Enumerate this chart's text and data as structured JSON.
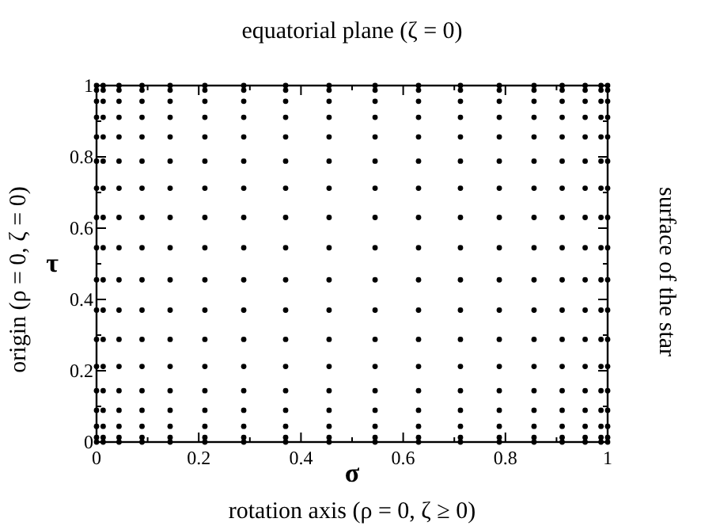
{
  "chart_data": {
    "type": "scatter",
    "title": "equatorial plane (ζ = 0)",
    "xlabel": "σ",
    "ylabel": "τ",
    "annotations": [
      "rotation axis (ρ = 0, ζ ≥ 0)",
      "origin (ρ = 0, ζ = 0)",
      "surface of the star"
    ],
    "xlim": [
      0,
      1
    ],
    "ylim": [
      0,
      1
    ],
    "xticks": [
      0,
      {
        "value": 0.1,
        "label": null
      },
      0.2,
      {
        "value": 0.3,
        "label": null
      },
      0.4,
      {
        "value": 0.5,
        "label": null
      },
      0.6,
      {
        "value": 0.7,
        "label": null
      },
      0.8,
      {
        "value": 0.9,
        "label": null
      },
      1
    ],
    "yticks": [
      0,
      {
        "value": 0.1,
        "label": null
      },
      0.2,
      {
        "value": 0.3,
        "label": null
      },
      0.4,
      {
        "value": 0.5,
        "label": null
      },
      0.6,
      {
        "value": 0.7,
        "label": null
      },
      0.8,
      {
        "value": 0.9,
        "label": null
      },
      1
    ],
    "grid": false,
    "marker": "circle",
    "series": [
      {
        "color": "#000000",
        "x": [
          0,
          0.013,
          0.044,
          0.089,
          0.144,
          0.212,
          0.288,
          0.37,
          0.455,
          0.545,
          0.63,
          0.712,
          0.788,
          0.856,
          0.911,
          0.956,
          0.987,
          1,
          0,
          0.013,
          0.044,
          0.089,
          0.144,
          0.212,
          0.288,
          0.37,
          0.455,
          0.545,
          0.63,
          0.712,
          0.788,
          0.856,
          0.911,
          0.956,
          0.987,
          1,
          0,
          0.013,
          0.044,
          0.089,
          0.144,
          0.212,
          0.288,
          0.37,
          0.455,
          0.545,
          0.63,
          0.712,
          0.788,
          0.856,
          0.911,
          0.956,
          0.987,
          1,
          0,
          0.013,
          0.044,
          0.089,
          0.144,
          0.212,
          0.288,
          0.37,
          0.455,
          0.545,
          0.63,
          0.712,
          0.788,
          0.856,
          0.911,
          0.956,
          0.987,
          1,
          0,
          0.013,
          0.044,
          0.089,
          0.144,
          0.212,
          0.288,
          0.37,
          0.455,
          0.545,
          0.63,
          0.712,
          0.788,
          0.856,
          0.911,
          0.956,
          0.987,
          1,
          0,
          0.013,
          0.044,
          0.089,
          0.144,
          0.212,
          0.288,
          0.37,
          0.455,
          0.545,
          0.63,
          0.712,
          0.788,
          0.856,
          0.911,
          0.956,
          0.987,
          1,
          0,
          0.013,
          0.044,
          0.089,
          0.144,
          0.212,
          0.288,
          0.37,
          0.455,
          0.545,
          0.63,
          0.712,
          0.788,
          0.856,
          0.911,
          0.956,
          0.987,
          1,
          0,
          0.013,
          0.044,
          0.089,
          0.144,
          0.212,
          0.288,
          0.37,
          0.455,
          0.545,
          0.63,
          0.712,
          0.788,
          0.856,
          0.911,
          0.956,
          0.987,
          1,
          0,
          0.013,
          0.044,
          0.089,
          0.144,
          0.212,
          0.288,
          0.37,
          0.455,
          0.545,
          0.63,
          0.712,
          0.788,
          0.856,
          0.911,
          0.956,
          0.987,
          1,
          0,
          0.013,
          0.044,
          0.089,
          0.144,
          0.212,
          0.288,
          0.37,
          0.455,
          0.545,
          0.63,
          0.712,
          0.788,
          0.856,
          0.911,
          0.956,
          0.987,
          1,
          0,
          0.013,
          0.044,
          0.089,
          0.144,
          0.212,
          0.288,
          0.37,
          0.455,
          0.545,
          0.63,
          0.712,
          0.788,
          0.856,
          0.911,
          0.956,
          0.987,
          1,
          0,
          0.013,
          0.044,
          0.089,
          0.144,
          0.212,
          0.288,
          0.37,
          0.455,
          0.545,
          0.63,
          0.712,
          0.788,
          0.856,
          0.911,
          0.956,
          0.987,
          1,
          0,
          0.013,
          0.044,
          0.089,
          0.144,
          0.212,
          0.288,
          0.37,
          0.455,
          0.545,
          0.63,
          0.712,
          0.788,
          0.856,
          0.911,
          0.956,
          0.987,
          1,
          0,
          0.013,
          0.044,
          0.089,
          0.144,
          0.212,
          0.288,
          0.37,
          0.455,
          0.545,
          0.63,
          0.712,
          0.788,
          0.856,
          0.911,
          0.956,
          0.987,
          1,
          0,
          0.013,
          0.044,
          0.089,
          0.144,
          0.212,
          0.288,
          0.37,
          0.455,
          0.545,
          0.63,
          0.712,
          0.788,
          0.856,
          0.911,
          0.956,
          0.987,
          1,
          0,
          0.013,
          0.044,
          0.089,
          0.144,
          0.212,
          0.288,
          0.37,
          0.455,
          0.545,
          0.63,
          0.712,
          0.788,
          0.856,
          0.911,
          0.956,
          0.987,
          1,
          0,
          0.013,
          0.044,
          0.089,
          0.144,
          0.212,
          0.288,
          0.37,
          0.455,
          0.545,
          0.63,
          0.712,
          0.788,
          0.856,
          0.911,
          0.956,
          0.987,
          1,
          0,
          0.013,
          0.044,
          0.089,
          0.144,
          0.212,
          0.288,
          0.37,
          0.455,
          0.545,
          0.63,
          0.712,
          0.788,
          0.856,
          0.911,
          0.956,
          0.987,
          1
        ],
        "values": [
          0,
          0,
          0,
          0,
          0,
          0,
          0,
          0,
          0,
          0,
          0,
          0,
          0,
          0,
          0,
          0,
          0,
          0,
          0.013,
          0.013,
          0.013,
          0.013,
          0.013,
          0.013,
          0.013,
          0.013,
          0.013,
          0.013,
          0.013,
          0.013,
          0.013,
          0.013,
          0.013,
          0.013,
          0.013,
          0.013,
          0.044,
          0.044,
          0.044,
          0.044,
          0.044,
          0.044,
          0.044,
          0.044,
          0.044,
          0.044,
          0.044,
          0.044,
          0.044,
          0.044,
          0.044,
          0.044,
          0.044,
          0.044,
          0.089,
          0.089,
          0.089,
          0.089,
          0.089,
          0.089,
          0.089,
          0.089,
          0.089,
          0.089,
          0.089,
          0.089,
          0.089,
          0.089,
          0.089,
          0.089,
          0.089,
          0.089,
          0.144,
          0.144,
          0.144,
          0.144,
          0.144,
          0.144,
          0.144,
          0.144,
          0.144,
          0.144,
          0.144,
          0.144,
          0.144,
          0.144,
          0.144,
          0.144,
          0.144,
          0.144,
          0.212,
          0.212,
          0.212,
          0.212,
          0.212,
          0.212,
          0.212,
          0.212,
          0.212,
          0.212,
          0.212,
          0.212,
          0.212,
          0.212,
          0.212,
          0.212,
          0.212,
          0.212,
          0.288,
          0.288,
          0.288,
          0.288,
          0.288,
          0.288,
          0.288,
          0.288,
          0.288,
          0.288,
          0.288,
          0.288,
          0.288,
          0.288,
          0.288,
          0.288,
          0.288,
          0.288,
          0.37,
          0.37,
          0.37,
          0.37,
          0.37,
          0.37,
          0.37,
          0.37,
          0.37,
          0.37,
          0.37,
          0.37,
          0.37,
          0.37,
          0.37,
          0.37,
          0.37,
          0.37,
          0.455,
          0.455,
          0.455,
          0.455,
          0.455,
          0.455,
          0.455,
          0.455,
          0.455,
          0.455,
          0.455,
          0.455,
          0.455,
          0.455,
          0.455,
          0.455,
          0.455,
          0.455,
          0.545,
          0.545,
          0.545,
          0.545,
          0.545,
          0.545,
          0.545,
          0.545,
          0.545,
          0.545,
          0.545,
          0.545,
          0.545,
          0.545,
          0.545,
          0.545,
          0.545,
          0.545,
          0.63,
          0.63,
          0.63,
          0.63,
          0.63,
          0.63,
          0.63,
          0.63,
          0.63,
          0.63,
          0.63,
          0.63,
          0.63,
          0.63,
          0.63,
          0.63,
          0.63,
          0.63,
          0.712,
          0.712,
          0.712,
          0.712,
          0.712,
          0.712,
          0.712,
          0.712,
          0.712,
          0.712,
          0.712,
          0.712,
          0.712,
          0.712,
          0.712,
          0.712,
          0.712,
          0.712,
          0.788,
          0.788,
          0.788,
          0.788,
          0.788,
          0.788,
          0.788,
          0.788,
          0.788,
          0.788,
          0.788,
          0.788,
          0.788,
          0.788,
          0.788,
          0.788,
          0.788,
          0.788,
          0.856,
          0.856,
          0.856,
          0.856,
          0.856,
          0.856,
          0.856,
          0.856,
          0.856,
          0.856,
          0.856,
          0.856,
          0.856,
          0.856,
          0.856,
          0.856,
          0.856,
          0.856,
          0.911,
          0.911,
          0.911,
          0.911,
          0.911,
          0.911,
          0.911,
          0.911,
          0.911,
          0.911,
          0.911,
          0.911,
          0.911,
          0.911,
          0.911,
          0.911,
          0.911,
          0.911,
          0.956,
          0.956,
          0.956,
          0.956,
          0.956,
          0.956,
          0.956,
          0.956,
          0.956,
          0.956,
          0.956,
          0.956,
          0.956,
          0.956,
          0.956,
          0.956,
          0.956,
          0.956,
          0.987,
          0.987,
          0.987,
          0.987,
          0.987,
          0.987,
          0.987,
          0.987,
          0.987,
          0.987,
          0.987,
          0.987,
          0.987,
          0.987,
          0.987,
          0.987,
          0.987,
          0.987,
          1,
          1,
          1,
          1,
          1,
          1,
          1,
          1,
          1,
          1,
          1,
          1,
          1,
          1,
          1,
          1,
          1,
          1
        ]
      }
    ]
  }
}
